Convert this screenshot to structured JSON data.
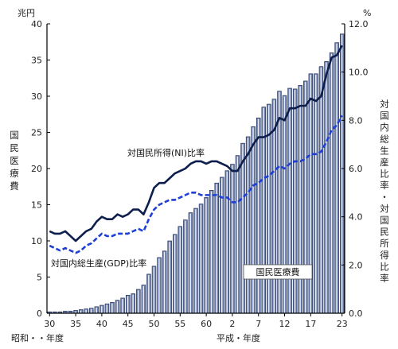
{
  "chart_data": {
    "type": "bar+line",
    "left_axis": {
      "unit": "兆円",
      "label": "国民医療費",
      "range": [
        0,
        40
      ],
      "ticks": [
        "0",
        "5",
        "10",
        "15",
        "20",
        "25",
        "30",
        "35",
        "40"
      ]
    },
    "right_axis": {
      "unit": "%",
      "label": "対国内総生産比率・対国民所得比率",
      "range": [
        0,
        12
      ],
      "ticks": [
        "0.0",
        "2.0",
        "4.0",
        "6.0",
        "8.0",
        "10.0",
        "12.0"
      ]
    },
    "x_axis": {
      "tick_labels": [
        "30",
        "35",
        "40",
        "45",
        "50",
        "55",
        "60",
        "2",
        "7",
        "12",
        "17",
        "23"
      ],
      "era_labels": {
        "showa": "昭和・・年度",
        "heisei": "平成・年度"
      }
    },
    "bar_series": {
      "name": "国民医療費",
      "years": [
        "S30",
        "S31",
        "S32",
        "S33",
        "S34",
        "S35",
        "S36",
        "S37",
        "S38",
        "S39",
        "S40",
        "S41",
        "S42",
        "S43",
        "S44",
        "S45",
        "S46",
        "S47",
        "S48",
        "S49",
        "S50",
        "S51",
        "S52",
        "S53",
        "S54",
        "S55",
        "S56",
        "S57",
        "S58",
        "S59",
        "S60",
        "S61",
        "S62",
        "S63",
        "H1",
        "H2",
        "H3",
        "H4",
        "H5",
        "H6",
        "H7",
        "H8",
        "H9",
        "H10",
        "H11",
        "H12",
        "H13",
        "H14",
        "H15",
        "H16",
        "H17",
        "H18",
        "H19",
        "H20",
        "H21",
        "H22",
        "H23"
      ],
      "values": [
        0.2,
        0.2,
        0.2,
        0.3,
        0.3,
        0.4,
        0.5,
        0.6,
        0.7,
        0.9,
        1.1,
        1.3,
        1.5,
        1.8,
        2.1,
        2.5,
        2.7,
        3.3,
        3.9,
        5.4,
        6.5,
        7.7,
        8.6,
        10.0,
        10.9,
        12.0,
        12.9,
        13.9,
        14.5,
        15.1,
        16.0,
        17.0,
        18.0,
        18.8,
        19.7,
        20.6,
        21.8,
        23.5,
        24.4,
        25.8,
        27.0,
        28.5,
        28.9,
        29.6,
        30.7,
        30.1,
        31.1,
        31.0,
        31.5,
        32.1,
        33.1,
        33.1,
        34.1,
        34.8,
        36.0,
        37.4,
        38.6
      ]
    },
    "line_series": [
      {
        "name": "対国民所得(NI)比率",
        "style": "solid",
        "values": [
          3.4,
          3.3,
          3.3,
          3.4,
          3.2,
          3.0,
          3.2,
          3.4,
          3.5,
          3.8,
          4.0,
          3.9,
          3.9,
          4.1,
          4.0,
          4.1,
          4.3,
          4.3,
          4.1,
          4.6,
          5.2,
          5.4,
          5.4,
          5.6,
          5.8,
          5.9,
          6.0,
          6.2,
          6.3,
          6.3,
          6.2,
          6.3,
          6.3,
          6.2,
          6.1,
          5.9,
          5.9,
          6.3,
          6.6,
          7.0,
          7.3,
          7.3,
          7.4,
          7.6,
          8.1,
          8.0,
          8.5,
          8.5,
          8.6,
          8.6,
          8.9,
          8.8,
          9.0,
          9.9,
          10.6,
          10.7,
          11.1
        ]
      },
      {
        "name": "対国内総生産(GDP)比率",
        "style": "dashed",
        "values": [
          2.8,
          2.7,
          2.6,
          2.7,
          2.6,
          2.5,
          2.6,
          2.8,
          2.9,
          3.1,
          3.3,
          3.2,
          3.2,
          3.3,
          3.3,
          3.3,
          3.4,
          3.5,
          3.4,
          3.9,
          4.3,
          4.5,
          4.6,
          4.7,
          4.7,
          4.8,
          4.9,
          5.0,
          5.0,
          4.9,
          4.9,
          4.9,
          4.9,
          4.8,
          4.8,
          4.6,
          4.6,
          4.8,
          5.0,
          5.3,
          5.4,
          5.6,
          5.7,
          5.9,
          6.1,
          6.0,
          6.2,
          6.3,
          6.3,
          6.4,
          6.6,
          6.6,
          6.7,
          7.1,
          7.6,
          7.8,
          8.2
        ]
      }
    ],
    "annotations": {
      "ni": "対国民所得(NI)比率",
      "gdp": "対国内総生産(GDP)比率",
      "bars": "国民医療費"
    },
    "colors": {
      "bar_fill": "#6d7fad",
      "bar_edge": "#1b2a52",
      "bar_highlight": "#ffffff",
      "ni_line": "#0d1e4d",
      "gdp_line": "#1e3fd6",
      "axis": "#000000"
    }
  }
}
